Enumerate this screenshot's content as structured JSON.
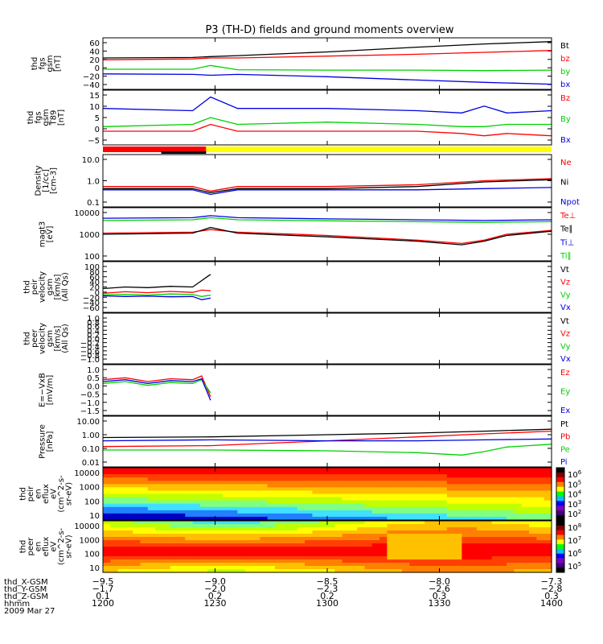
{
  "title": "P3 (TH-D) fields and ground moments overview",
  "colors": {
    "black": "#000000",
    "red": "#ff0000",
    "green": "#00d000",
    "blue": "#0000e0",
    "yellow": "#ffff00"
  },
  "chart_data": [
    {
      "type": "line",
      "ylabel": [
        "thd",
        "fgs",
        "gsm",
        "[nT]"
      ],
      "yticks": [
        "60",
        "40",
        "20",
        "0",
        "−20",
        "−40"
      ],
      "ylim": [
        -45,
        65
      ],
      "series": [
        {
          "name": "Bt",
          "color": "#000000",
          "x": [
            0,
            0.2,
            0.24,
            0.3,
            0.5,
            0.7,
            0.85,
            1.0
          ],
          "y": [
            22,
            23,
            25,
            27,
            35,
            45,
            52,
            57
          ]
        },
        {
          "name": "bz",
          "color": "#ff0000",
          "x": [
            0,
            0.2,
            0.24,
            0.3,
            0.5,
            0.7,
            0.85,
            1.0
          ],
          "y": [
            18,
            20,
            22,
            22,
            26,
            30,
            34,
            38
          ]
        },
        {
          "name": "by",
          "color": "#00d000",
          "x": [
            0,
            0.2,
            0.24,
            0.3,
            0.5,
            0.7,
            0.85,
            1.0
          ],
          "y": [
            -2,
            -2,
            6,
            -3,
            -4,
            -4,
            -5,
            -4
          ]
        },
        {
          "name": "bx",
          "color": "#0000e0",
          "x": [
            0,
            0.2,
            0.24,
            0.3,
            0.5,
            0.7,
            0.85,
            1.0
          ],
          "y": [
            -12,
            -13,
            -15,
            -13,
            -18,
            -25,
            -30,
            -34
          ]
        }
      ]
    },
    {
      "type": "line",
      "ylabel": [
        "thd",
        "fgs",
        "gsm",
        "T89",
        "[nT]"
      ],
      "yticks": [
        "15",
        "10",
        "5",
        "0",
        "−5"
      ],
      "ylim": [
        -7,
        17
      ],
      "series": [
        {
          "name": "Bz",
          "color": "#ff0000",
          "x": [
            0,
            0.2,
            0.24,
            0.3,
            0.5,
            0.7,
            0.8,
            0.85,
            0.9,
            1.0
          ],
          "y": [
            -1,
            -1,
            2,
            -1,
            -1,
            -1,
            -2,
            -3,
            -2,
            -3
          ]
        },
        {
          "name": "By",
          "color": "#00d000",
          "x": [
            0,
            0.2,
            0.24,
            0.3,
            0.5,
            0.7,
            0.8,
            0.85,
            0.9,
            1.0
          ],
          "y": [
            1,
            2,
            5,
            2,
            3,
            2,
            1,
            1,
            2,
            2
          ]
        },
        {
          "name": "Bx",
          "color": "#0000e0",
          "x": [
            0,
            0.2,
            0.24,
            0.3,
            0.5,
            0.7,
            0.8,
            0.85,
            0.9,
            1.0
          ],
          "y": [
            9,
            8,
            14,
            9,
            9,
            8,
            7,
            10,
            7,
            8
          ]
        }
      ]
    },
    {
      "type": "line",
      "ylabel": [
        "Density",
        "[1/cc]",
        "[cm-3]"
      ],
      "log": true,
      "yticks": [
        "10.0",
        "1.0",
        "0.1"
      ],
      "ylim": [
        0.1,
        10
      ],
      "series": [
        {
          "name": "Ne",
          "color": "#ff0000",
          "x": [
            0,
            0.2,
            0.24,
            0.3,
            0.5,
            0.7,
            0.85,
            1.0
          ],
          "y": [
            0.6,
            0.6,
            0.4,
            0.6,
            0.6,
            0.7,
            1.0,
            1.2
          ]
        },
        {
          "name": "Ni",
          "color": "#000000",
          "x": [
            0,
            0.2,
            0.24,
            0.3,
            0.5,
            0.7,
            0.85,
            1.0
          ],
          "y": [
            0.5,
            0.5,
            0.35,
            0.5,
            0.5,
            0.6,
            0.9,
            1.1
          ]
        },
        {
          "name": "Npot",
          "color": "#0000e0",
          "x": [
            0,
            0.2,
            0.24,
            0.3,
            0.5,
            0.7,
            0.85,
            1.0
          ],
          "y": [
            0.45,
            0.45,
            0.3,
            0.45,
            0.45,
            0.45,
            0.5,
            0.55
          ]
        }
      ]
    },
    {
      "type": "line",
      "ylabel": [
        "magt3",
        "[eV]"
      ],
      "log": true,
      "yticks": [
        "10000",
        "1000",
        "100"
      ],
      "ylim": [
        100,
        10000
      ],
      "series": [
        {
          "name": "Te⊥",
          "color": "#ff0000",
          "x": [
            0,
            0.2,
            0.24,
            0.3,
            0.5,
            0.7,
            0.8,
            0.85,
            0.9,
            1.0
          ],
          "y": [
            1100,
            1200,
            1500,
            1200,
            900,
            600,
            450,
            600,
            1000,
            1400
          ]
        },
        {
          "name": "Te∥",
          "color": "#000000",
          "x": [
            0,
            0.2,
            0.24,
            0.3,
            0.5,
            0.7,
            0.8,
            0.85,
            0.9,
            1.0
          ],
          "y": [
            1000,
            1100,
            1800,
            1100,
            800,
            550,
            400,
            550,
            900,
            1300
          ]
        },
        {
          "name": "Ti⊥",
          "color": "#0000e0",
          "x": [
            0,
            0.2,
            0.24,
            0.3,
            0.5,
            0.7,
            0.85,
            1.0
          ],
          "y": [
            4000,
            4200,
            5000,
            4200,
            3800,
            3500,
            3300,
            3500
          ]
        },
        {
          "name": "Ti∥",
          "color": "#00d000",
          "x": [
            0,
            0.2,
            0.24,
            0.3,
            0.5,
            0.7,
            0.85,
            1.0
          ],
          "y": [
            3300,
            3500,
            4200,
            3500,
            3200,
            3000,
            2800,
            3000
          ]
        }
      ]
    },
    {
      "type": "line",
      "ylabel": [
        "thd",
        "peir",
        "velocity",
        "gsm",
        "[km/s]",
        "(All Qs)"
      ],
      "yticks": [
        "100",
        "80",
        "60",
        "40",
        "20",
        "0",
        "−20",
        "−40",
        "−60"
      ],
      "ylim": [
        -60,
        100
      ],
      "series": [
        {
          "name": "Vt",
          "color": "#000000",
          "x": [
            0,
            0.05,
            0.1,
            0.15,
            0.2,
            0.22,
            0.24
          ],
          "y": [
            15,
            20,
            18,
            22,
            20,
            40,
            60
          ]
        },
        {
          "name": "Vz",
          "color": "#ff0000",
          "x": [
            0,
            0.05,
            0.1,
            0.15,
            0.2,
            0.22,
            0.24
          ],
          "y": [
            0,
            5,
            2,
            6,
            3,
            10,
            8
          ]
        },
        {
          "name": "Vy",
          "color": "#00d000",
          "x": [
            0,
            0.05,
            0.1,
            0.15,
            0.2,
            0.22,
            0.24
          ],
          "y": [
            -5,
            -3,
            -6,
            -2,
            -4,
            -10,
            -6
          ]
        },
        {
          "name": "Vx",
          "color": "#0000e0",
          "x": [
            0,
            0.05,
            0.1,
            0.15,
            0.2,
            0.22,
            0.24
          ],
          "y": [
            -8,
            -10,
            -9,
            -11,
            -10,
            -20,
            -15
          ]
        }
      ]
    },
    {
      "type": "line",
      "ylabel": [
        "thd",
        "peer",
        "velocity",
        "gsm",
        "[km/s]",
        "(All Qs)"
      ],
      "yticks": [
        "1.0",
        "0.8",
        "0.6",
        "0.4",
        "0.2",
        "0.0",
        "−0.2",
        "−0.4",
        "−0.6",
        "−0.8",
        "−1.0"
      ],
      "ylim": [
        -1,
        1
      ],
      "series": [
        {
          "name": "Vt",
          "color": "#000000",
          "x": [],
          "y": []
        },
        {
          "name": "Vz",
          "color": "#ff0000",
          "x": [],
          "y": []
        },
        {
          "name": "Vy",
          "color": "#00d000",
          "x": [],
          "y": []
        },
        {
          "name": "Vx",
          "color": "#0000e0",
          "x": [],
          "y": []
        }
      ]
    },
    {
      "type": "line",
      "ylabel": [
        "E=−VxB",
        "[mV/m]"
      ],
      "yticks": [
        "1.0",
        "0.5",
        "0.0",
        "−0.5",
        "−1.0",
        "−1.5"
      ],
      "ylim": [
        -1.6,
        1.1
      ],
      "series": [
        {
          "name": "Ez",
          "color": "#ff0000",
          "x": [
            0,
            0.05,
            0.1,
            0.15,
            0.2,
            0.22,
            0.24
          ],
          "y": [
            0.3,
            0.4,
            0.2,
            0.35,
            0.3,
            0.5,
            -0.6
          ]
        },
        {
          "name": "Ey",
          "color": "#00d000",
          "x": [
            0,
            0.05,
            0.1,
            0.15,
            0.2,
            0.22,
            0.24
          ],
          "y": [
            0.1,
            0.2,
            0.0,
            0.15,
            0.1,
            0.3,
            -0.4
          ]
        },
        {
          "name": "Ex",
          "color": "#0000e0",
          "x": [
            0,
            0.05,
            0.1,
            0.15,
            0.2,
            0.22,
            0.24
          ],
          "y": [
            0.2,
            0.3,
            0.1,
            0.25,
            0.2,
            0.35,
            -0.8
          ]
        }
      ]
    },
    {
      "type": "line",
      "ylabel": [
        "Pressure",
        "[nPa]"
      ],
      "log": true,
      "yticks": [
        "10.00",
        "1.00",
        "0.10",
        "0.01"
      ],
      "ylim": [
        0.01,
        10
      ],
      "series": [
        {
          "name": "Pt",
          "color": "#000000",
          "x": [
            0,
            0.24,
            0.5,
            0.7,
            0.85,
            1.0
          ],
          "y": [
            0.55,
            0.6,
            0.8,
            1.0,
            1.3,
            1.7
          ]
        },
        {
          "name": "Pb",
          "color": "#ff0000",
          "x": [
            0,
            0.24,
            0.5,
            0.7,
            0.85,
            1.0
          ],
          "y": [
            0.16,
            0.18,
            0.35,
            0.6,
            0.9,
            1.3
          ]
        },
        {
          "name": "Pe",
          "color": "#00d000",
          "x": [
            0,
            0.24,
            0.5,
            0.7,
            0.8,
            0.85,
            0.9,
            1.0
          ],
          "y": [
            0.1,
            0.1,
            0.09,
            0.07,
            0.05,
            0.08,
            0.15,
            0.22
          ]
        },
        {
          "name": "Pi",
          "color": "#0000e0",
          "x": [
            0,
            0.24,
            0.5,
            0.7,
            0.85,
            1.0
          ],
          "y": [
            0.35,
            0.4,
            0.35,
            0.35,
            0.4,
            0.45
          ]
        }
      ]
    },
    {
      "type": "heatmap",
      "ylabel": [
        "thd",
        "peir",
        "en",
        "eflux",
        "eV",
        "(cm^2-s-",
        "sr-eV)"
      ],
      "yticks": [
        "10000",
        "1000",
        "100",
        "10"
      ],
      "colorbar_ticks": [
        "10^6",
        "10^5",
        "10^4",
        "10^3",
        "10^2"
      ]
    },
    {
      "type": "heatmap",
      "ylabel": [
        "thd",
        "peer",
        "en",
        "eflux",
        "eV",
        "(cm^2-s-",
        "sr-eV)"
      ],
      "yticks": [
        "10000",
        "1000",
        "100",
        "10"
      ],
      "colorbar_ticks": [
        "10^8",
        "10^7",
        "10^6",
        "10^5"
      ]
    }
  ],
  "xaxis": {
    "ticks": [
      "1200",
      "1230",
      "1300",
      "1330",
      "1400"
    ],
    "rows": [
      {
        "label": "thd_X-GSM",
        "values": [
          "−9.5",
          "−9.0",
          "−8.5",
          "−8.0",
          "−7.3"
        ]
      },
      {
        "label": "thd_Y-GSM",
        "values": [
          "−1.7",
          "−2.0",
          "−2.3",
          "−2.6",
          "−2.8"
        ]
      },
      {
        "label": "thd_Z-GSM",
        "values": [
          "0.1",
          "0.2",
          "0.2",
          "0.3",
          "0.3"
        ]
      },
      {
        "label": "hhmm",
        "values": [
          "1200",
          "1230",
          "1300",
          "1330",
          "1400"
        ]
      }
    ],
    "date": "2009 Mar 27"
  },
  "status_bar": [
    "#ff0000",
    "#000000",
    "#ffff00"
  ]
}
